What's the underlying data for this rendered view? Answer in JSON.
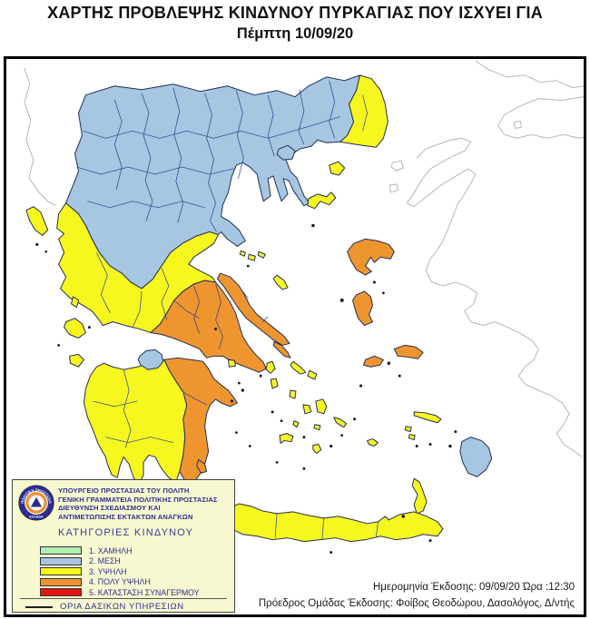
{
  "title": {
    "line1": "ΧΑΡΤΗΣ ΠΡΟΒΛΕΨΗΣ ΚΙΝΔΥΝΟΥ ΠΥΡΚΑΓΙΑΣ ΠΟΥ ΙΣΧΥΕΙ ΓΙΑ",
    "line2": "Πέμπτη 10/09/20"
  },
  "legend": {
    "logo": {
      "ring_text": "ΠΟΛΙΤΙΚΗ ΠΡΟΣΤΑΣΙΑ",
      "bottom_text": "ΕΛΛΑΔΑ"
    },
    "agency_lines": [
      "ΥΠΟΥΡΓΕΙΟ ΠΡΟΣΤΑΣΙΑΣ ΤΟΥ ΠΟΛΙΤΗ",
      "ΓΕΝΙΚΗ ΓΡΑΜΜΑΤΕΙΑ ΠΟΛΙΤΙΚΗΣ ΠΡΟΣΤΑΣΙΑΣ",
      "ΔΙΕΥΘΥΝΣΗ ΣΧΕΔΙΑΣΜΟΥ ΚΑΙ",
      "ΑΝΤΙΜΕΤΩΠΙΣΗΣ ΕΚΤΑΚΤΩΝ ΑΝΑΓΚΩΝ"
    ],
    "heading": "ΚΑΤΗΓΟΡΙΕΣ ΚΙΝΔΥΝΟΥ",
    "categories": [
      {
        "label": "1. ΧΑΜΗΛΗ",
        "color": "#b2edb2"
      },
      {
        "label": "2. ΜΕΣΗ",
        "color": "#a6c6e2"
      },
      {
        "label": "3. ΥΨΗΛΗ",
        "color": "#f7f720"
      },
      {
        "label": "4. ΠΟΛΥ ΥΨΗΛΗ",
        "color": "#ef9530"
      },
      {
        "label": "5. ΚΑΤΑΣΤΑΣΗ ΣΥΝΑΓΕΡΜΟΥ",
        "color": "#e41414"
      }
    ],
    "boundary_note": "ΟΡΙΑ ΔΑΣΙΚΩΝ ΥΠΗΡΕΣΙΩΝ"
  },
  "footer": {
    "issue_line": "Ημερομηνία Έκδοσης: 09/09/20  Ώρα :12:30",
    "team_line": "Πρόεδρος Ομάδας Έκδοσης: Φοίβος Θεοδώρου,  Δασολόγος, Δ/ντής"
  },
  "map": {
    "sea_color": "#ffffff",
    "coastline_color": "#1f2d55",
    "prefecture_line_color": "#20408c",
    "foreign_coastline_color": "#b5b5b5",
    "risk_by_area": {
      "north-mainland-macedonia-thrace-epirus-thessaly": 2,
      "evros-northeast": 3,
      "west-coast-and-central-greece": 3,
      "attica-boeotia": 4,
      "euboea": 4,
      "peloponnese-west": 3,
      "peloponnese-northeast-and-east": 4,
      "peloponnese-central-patch": 2,
      "ionian-islands": 3,
      "crete": 3,
      "cyclades": 3,
      "sporades-skyros": 3,
      "lemnos-samothrace": 3,
      "thasos": 2,
      "lesbos-chios-samos-ikaria": 4,
      "andros": 4,
      "kythira": 4,
      "kos-karpathos": 3,
      "rhodes": 2
    }
  }
}
